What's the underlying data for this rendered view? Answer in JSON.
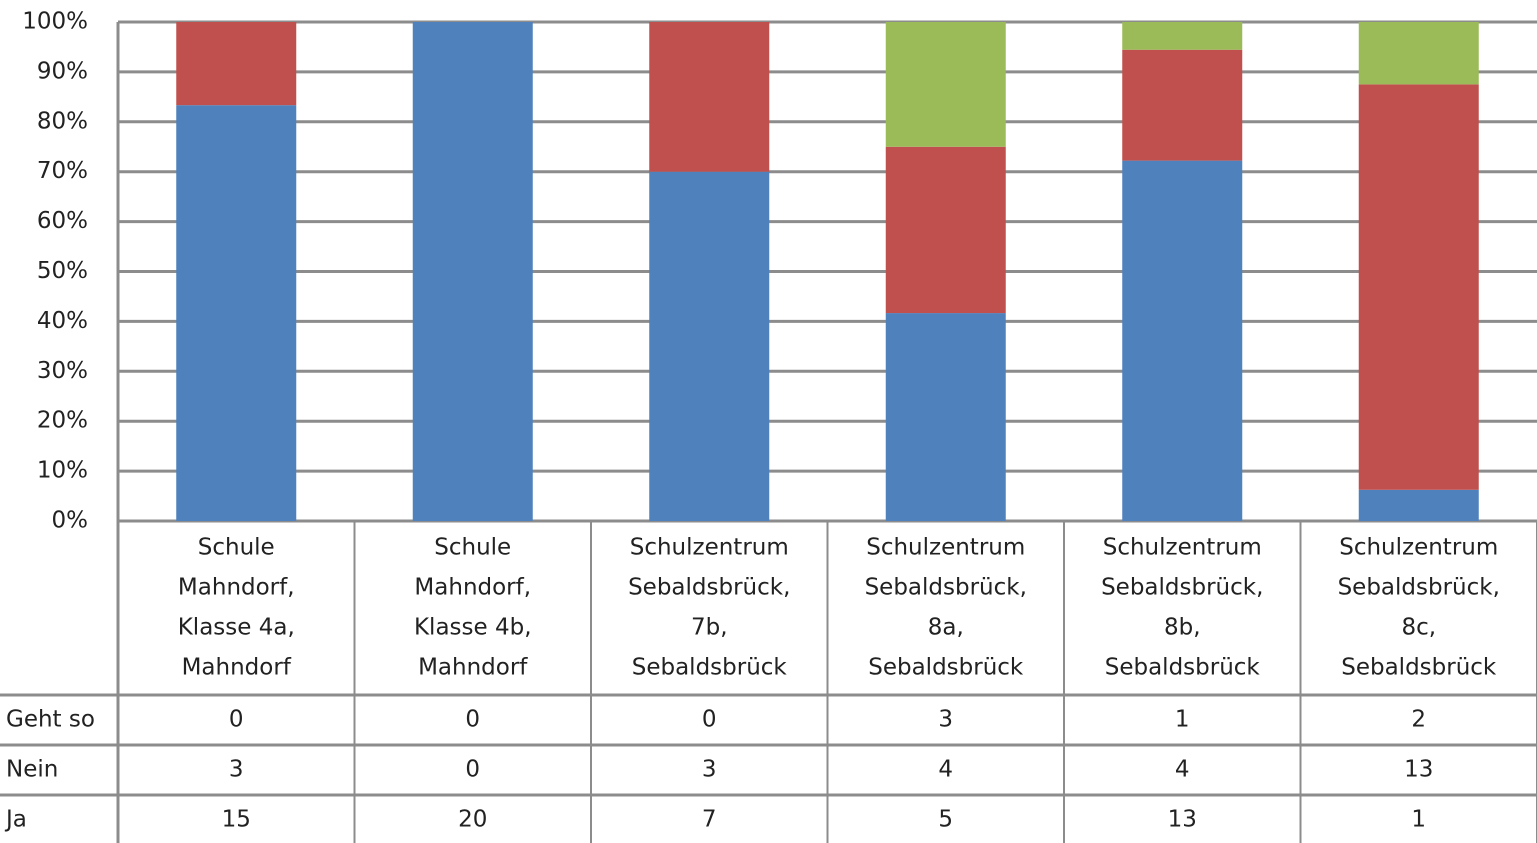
{
  "chart_data": {
    "type": "stacked_bar_100",
    "categories": [
      [
        "Schule",
        "Mahndorf,",
        "Klasse 4a,",
        "Mahndorf"
      ],
      [
        "Schule",
        "Mahndorf,",
        "Klasse 4b,",
        "Mahndorf"
      ],
      [
        "Schulzentrum",
        "Sebaldsbrück,",
        "7b,",
        "Sebaldsbrück"
      ],
      [
        "Schulzentrum",
        "Sebaldsbrück,",
        "8a,",
        "Sebaldsbrück"
      ],
      [
        "Schulzentrum",
        "Sebaldsbrück,",
        "8b,",
        "Sebaldsbrück"
      ],
      [
        "Schulzentrum",
        "Sebaldsbrück,",
        "8c,",
        "Sebaldsbrück"
      ]
    ],
    "series": [
      {
        "name": "Geht so",
        "color": "#9bbb59",
        "values": [
          0,
          0,
          0,
          3,
          1,
          2
        ]
      },
      {
        "name": "Nein",
        "color": "#c0504d",
        "values": [
          3,
          0,
          3,
          4,
          4,
          13
        ]
      },
      {
        "name": "Ja",
        "color": "#4f81bd",
        "values": [
          15,
          20,
          7,
          5,
          13,
          1
        ]
      }
    ],
    "ylim": [
      0,
      100
    ],
    "yticks": [
      {
        "value": 0,
        "label": "0%"
      },
      {
        "value": 10,
        "label": "10%"
      },
      {
        "value": 20,
        "label": "20%"
      },
      {
        "value": 30,
        "label": "30%"
      },
      {
        "value": 40,
        "label": "40%"
      },
      {
        "value": 50,
        "label": "50%"
      },
      {
        "value": 60,
        "label": "60%"
      },
      {
        "value": 70,
        "label": "70%"
      },
      {
        "value": 80,
        "label": "80%"
      },
      {
        "value": 90,
        "label": "90%"
      },
      {
        "value": 100,
        "label": "100%"
      }
    ],
    "grid": true
  }
}
